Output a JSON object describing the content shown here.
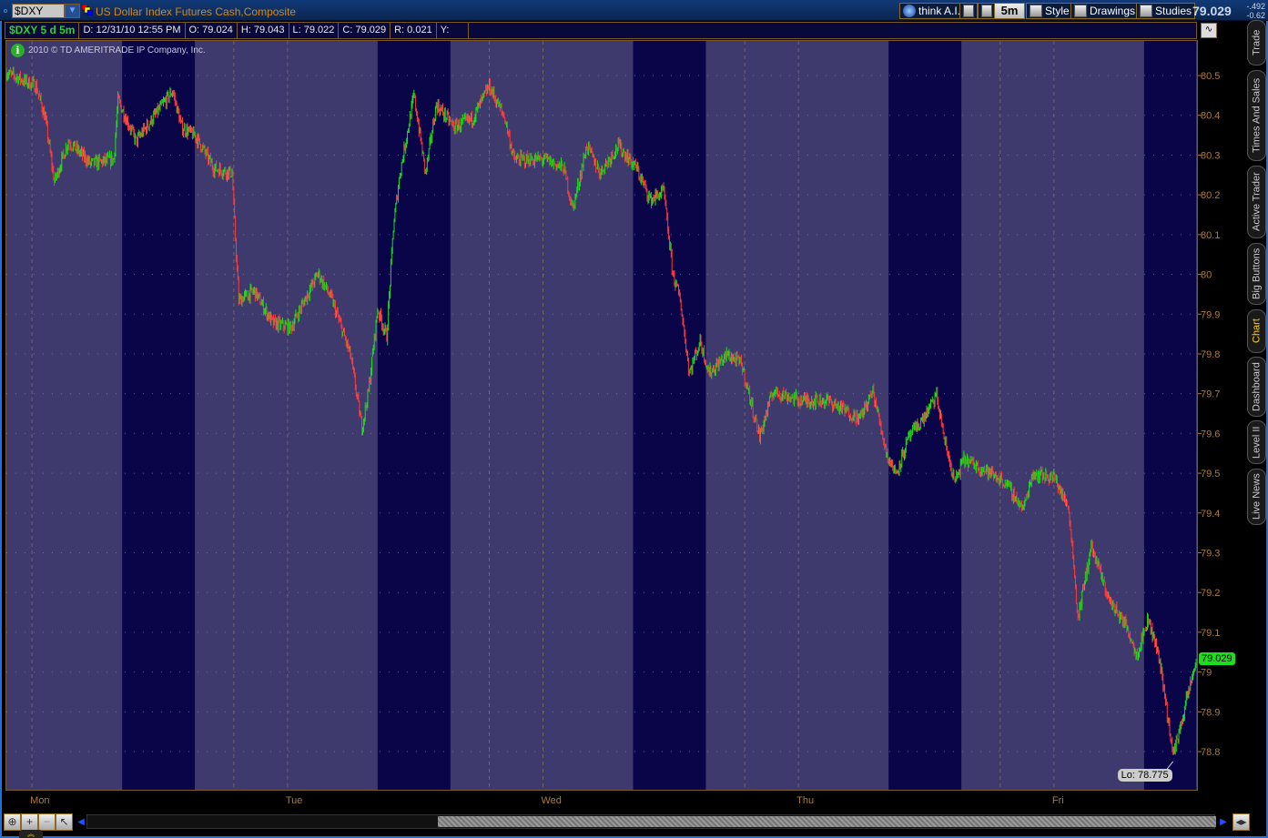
{
  "header": {
    "symbol": "$DXY",
    "description": "US Dollar Index Futures Cash,Composite",
    "last": "79.029",
    "change": "-.492",
    "change_pct": "-0.62 %",
    "buttons": [
      {
        "label": "think A.I.",
        "icon": "thinkai-globe-icon"
      },
      {
        "label": "",
        "icon": "drawing-tools-icon"
      },
      {
        "label": "",
        "icon": "wrench-icon"
      },
      {
        "label": "5m",
        "icon": ""
      },
      {
        "label": "Style",
        "icon": "style-chart-icon"
      },
      {
        "label": "Drawings",
        "icon": "pencil-icon"
      },
      {
        "label": "Studies",
        "icon": "studies-icon"
      }
    ]
  },
  "infobar": {
    "title": "$DXY 5 d 5m",
    "date": "D: 12/31/10 12:55 PM",
    "open": "O: 79.024",
    "high": "H: 79.043",
    "low": "L: 79.022",
    "close": "C: 79.029",
    "range": "R: 0.021",
    "y": "Y:"
  },
  "copyright": "2010 © TD AMERITRADE IP Company, Inc.",
  "tabs": [
    "Trade",
    "Times And Sales",
    "Active Trader",
    "Big Buttons",
    "Chart",
    "Dashboard",
    "Level II",
    "Live News"
  ],
  "active_tab": "Chart",
  "colors": {
    "up": "#19e019",
    "down": "#ff3b3b",
    "session_light": "#3f3a6e",
    "session_dark": "#0a0548",
    "axis_text": "#b07a30",
    "border": "#7a5a2a"
  },
  "chart_data": {
    "type": "candlestick",
    "interval": "5m",
    "period": "5 d",
    "bars": 1440,
    "ylim": [
      78.704,
      80.587
    ],
    "yticks": [
      78.8,
      78.9,
      79,
      79.1,
      79.2,
      79.3,
      79.4,
      79.5,
      79.6,
      79.7,
      79.8,
      79.9,
      80,
      80.1,
      80.2,
      80.3,
      80.4,
      80.5
    ],
    "ytick_labels": [
      "78.8",
      "78.9",
      "79",
      "79.1",
      "79.2",
      "79.3",
      "79.4",
      "79.5",
      "79.6",
      "79.7",
      "79.8",
      "79.9",
      "80",
      "80.1",
      "80.2",
      "80.3",
      "80.4",
      "80.5"
    ],
    "xticks": [
      {
        "bar": 31,
        "label": "Mon"
      },
      {
        "bar": 340,
        "label": "Tue"
      },
      {
        "bar": 649,
        "label": "Wed"
      },
      {
        "bar": 958,
        "label": "Thu"
      },
      {
        "bar": 1267,
        "label": "Fri"
      }
    ],
    "session_separators": [
      275,
      584,
      893,
      1202
    ],
    "dark_sessions": [
      [
        140,
        228
      ],
      [
        449,
        537
      ],
      [
        758,
        846
      ],
      [
        1067,
        1155
      ],
      [
        1376,
        1439
      ]
    ],
    "price_path": [
      [
        0,
        80.507
      ],
      [
        36,
        80.473
      ],
      [
        47,
        80.393
      ],
      [
        58,
        80.232
      ],
      [
        75,
        80.335
      ],
      [
        102,
        80.278
      ],
      [
        130,
        80.289
      ],
      [
        135,
        80.438
      ],
      [
        157,
        80.335
      ],
      [
        201,
        80.461
      ],
      [
        212,
        80.37
      ],
      [
        229,
        80.347
      ],
      [
        251,
        80.267
      ],
      [
        273,
        80.255
      ],
      [
        276,
        80.129
      ],
      [
        281,
        79.935
      ],
      [
        300,
        79.958
      ],
      [
        322,
        79.878
      ],
      [
        344,
        79.866
      ],
      [
        377,
        80.003
      ],
      [
        394,
        79.935
      ],
      [
        416,
        79.798
      ],
      [
        430,
        79.615
      ],
      [
        438,
        79.706
      ],
      [
        449,
        79.912
      ],
      [
        460,
        79.843
      ],
      [
        468,
        80.118
      ],
      [
        476,
        80.255
      ],
      [
        493,
        80.45
      ],
      [
        507,
        80.255
      ],
      [
        520,
        80.427
      ],
      [
        542,
        80.37
      ],
      [
        564,
        80.392
      ],
      [
        584,
        80.473
      ],
      [
        603,
        80.392
      ],
      [
        614,
        80.289
      ],
      [
        652,
        80.289
      ],
      [
        674,
        80.267
      ],
      [
        685,
        80.164
      ],
      [
        702,
        80.324
      ],
      [
        718,
        80.255
      ],
      [
        740,
        80.324
      ],
      [
        762,
        80.267
      ],
      [
        779,
        80.187
      ],
      [
        795,
        80.209
      ],
      [
        801,
        80.095
      ],
      [
        806,
        80.003
      ],
      [
        815,
        79.935
      ],
      [
        826,
        79.752
      ],
      [
        839,
        79.832
      ],
      [
        850,
        79.752
      ],
      [
        872,
        79.798
      ],
      [
        889,
        79.775
      ],
      [
        900,
        79.683
      ],
      [
        911,
        79.592
      ],
      [
        927,
        79.706
      ],
      [
        960,
        79.683
      ],
      [
        993,
        79.683
      ],
      [
        1032,
        79.637
      ],
      [
        1048,
        79.706
      ],
      [
        1065,
        79.546
      ],
      [
        1076,
        79.5
      ],
      [
        1092,
        79.592
      ],
      [
        1109,
        79.637
      ],
      [
        1125,
        79.695
      ],
      [
        1136,
        79.569
      ],
      [
        1147,
        79.477
      ],
      [
        1158,
        79.534
      ],
      [
        1180,
        79.512
      ],
      [
        1208,
        79.477
      ],
      [
        1230,
        79.409
      ],
      [
        1241,
        79.5
      ],
      [
        1268,
        79.489
      ],
      [
        1285,
        79.409
      ],
      [
        1290,
        79.294
      ],
      [
        1296,
        79.134
      ],
      [
        1312,
        79.317
      ],
      [
        1334,
        79.18
      ],
      [
        1356,
        79.111
      ],
      [
        1367,
        79.043
      ],
      [
        1381,
        79.134
      ],
      [
        1395,
        79.031
      ],
      [
        1411,
        78.791
      ],
      [
        1422,
        78.882
      ],
      [
        1439,
        79.029
      ]
    ],
    "low_marker": {
      "bar": 1411,
      "value": 78.775,
      "label": "Lo: 78.775"
    },
    "last_marker": {
      "value": 79.029,
      "label": "79.029"
    }
  }
}
